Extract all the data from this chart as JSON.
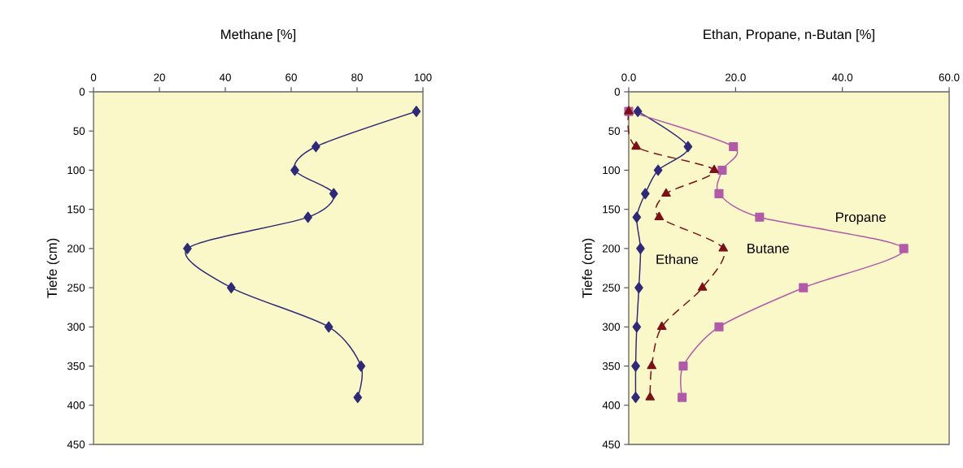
{
  "chart_data": [
    {
      "type": "line",
      "title": "Methane [%]",
      "ylabel": "Tiefe (cm)",
      "xlim": [
        0,
        100
      ],
      "xticks": [
        0,
        20,
        40,
        60,
        80,
        100
      ],
      "ylim": [
        450,
        0
      ],
      "yticks": [
        0,
        50,
        100,
        150,
        200,
        250,
        300,
        350,
        400,
        450
      ],
      "series": [
        {
          "color": "#2e2a78",
          "marker": "diamond",
          "line_style": "solid",
          "x": [
            98.0,
            67.5,
            61.1,
            72.9,
            65.1,
            28.5,
            41.8,
            71.4,
            81.2,
            80.2
          ],
          "values": [
            25,
            70,
            100,
            130,
            160,
            200,
            250,
            300,
            350,
            390
          ]
        }
      ]
    },
    {
      "type": "line",
      "title": "Ethan, Propane, n-Butan [%]",
      "ylabel": "Tiefe (cm)",
      "xlim": [
        0,
        60
      ],
      "xticks": [
        {
          "value": 0,
          "label": "0.0"
        },
        {
          "value": 20,
          "label": "20.0"
        },
        {
          "value": 40,
          "label": "40.0"
        },
        {
          "value": 60,
          "label": "60.0"
        }
      ],
      "ylim": [
        450,
        0
      ],
      "yticks": [
        0,
        50,
        100,
        150,
        200,
        250,
        300,
        350,
        400,
        450
      ],
      "series": [
        {
          "name": "Ethane",
          "color": "#2e2a78",
          "marker": "diamond",
          "line_style": "solid",
          "x": [
            1.7,
            11.1,
            5.5,
            3.1,
            1.5,
            2.2,
            1.9,
            1.5,
            1.3,
            1.3
          ],
          "values": [
            25,
            70,
            100,
            130,
            160,
            200,
            250,
            300,
            350,
            390
          ]
        },
        {
          "name": "Propane",
          "color": "#b05aa8",
          "marker": "square",
          "line_style": "solid",
          "x": [
            0.0,
            19.6,
            17.5,
            16.9,
            24.5,
            51.5,
            32.7,
            16.9,
            10.2,
            10.0
          ],
          "values": [
            25,
            70,
            100,
            130,
            160,
            200,
            250,
            300,
            350,
            390
          ]
        },
        {
          "name": "Butane",
          "color": "#7b1016",
          "marker": "triangle",
          "line_style": "dashed",
          "x": [
            0.0,
            1.4,
            16.0,
            7.0,
            5.7,
            17.7,
            13.8,
            6.2,
            4.3,
            4.0
          ],
          "values": [
            25,
            70,
            100,
            130,
            160,
            200,
            250,
            300,
            350,
            390
          ]
        }
      ]
    }
  ]
}
